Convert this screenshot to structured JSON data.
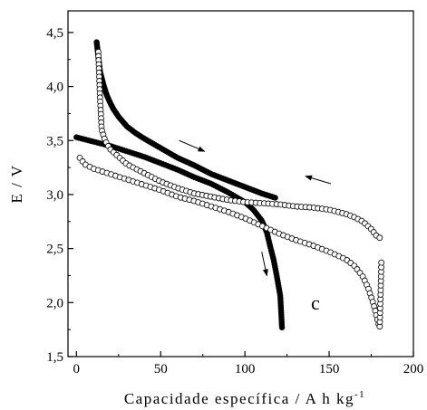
{
  "chart_data": {
    "type": "scatter",
    "title": "",
    "xlabel": "Capacidade específica / A h kg",
    "xlabel_superscript": "-1",
    "ylabel": "E / V",
    "xlim": [
      -5,
      200
    ],
    "ylim": [
      1.5,
      4.7
    ],
    "xticks": [
      0,
      50,
      100,
      150,
      200
    ],
    "yticks": [
      1.5,
      2.0,
      2.5,
      3.0,
      3.5,
      4.0,
      4.5
    ],
    "xtick_labels": [
      "0",
      "50",
      "100",
      "150",
      "200"
    ],
    "ytick_labels": [
      "1,5",
      "2,0",
      "2,5",
      "3,0",
      "3,5",
      "4,0",
      "4,5"
    ],
    "grid": false,
    "legend": "none",
    "annotation": "c",
    "series": [
      {
        "marker": "filled-circle",
        "color": "#000000",
        "curves": [
          {
            "x": [
              12,
              13,
              14,
              16,
              18,
              20,
              22,
              25,
              30,
              35,
              40,
              50,
              60,
              70,
              80,
              90,
              100,
              110,
              118
            ],
            "y": [
              4.41,
              4.28,
              4.14,
              4.02,
              3.92,
              3.85,
              3.79,
              3.72,
              3.63,
              3.57,
              3.52,
              3.43,
              3.34,
              3.27,
              3.19,
              3.13,
              3.07,
              3.01,
              2.97
            ]
          },
          {
            "x": [
              0,
              5,
              10,
              20,
              30,
              40,
              50,
              60,
              70,
              80,
              90,
              100,
              105,
              110,
              113,
              115,
              117,
              119,
              121,
              122
            ],
            "y": [
              3.53,
              3.51,
              3.49,
              3.45,
              3.4,
              3.35,
              3.29,
              3.23,
              3.16,
              3.1,
              3.02,
              2.93,
              2.86,
              2.76,
              2.65,
              2.52,
              2.4,
              2.24,
              2.06,
              1.77
            ]
          }
        ]
      },
      {
        "marker": "open-circle",
        "color": "#000000",
        "curves": [
          {
            "x": [
              13,
              14,
              15,
              17,
              20,
              25,
              30,
              40,
              50,
              60,
              70,
              80,
              90,
              100,
              110,
              120,
              130,
              140,
              150,
              160,
              165,
              170,
              175,
              178,
              180
            ],
            "y": [
              4.32,
              3.9,
              3.6,
              3.5,
              3.42,
              3.35,
              3.28,
              3.2,
              3.12,
              3.06,
              3.01,
              2.98,
              2.95,
              2.93,
              2.92,
              2.91,
              2.89,
              2.88,
              2.86,
              2.82,
              2.79,
              2.75,
              2.68,
              2.62,
              2.6
            ]
          },
          {
            "x": [
              2,
              5,
              10,
              20,
              30,
              40,
              50,
              60,
              70,
              80,
              90,
              100,
              110,
              120,
              130,
              140,
              150,
              160,
              165,
              170,
              173,
              175,
              177,
              178,
              179,
              180,
              181
            ],
            "y": [
              3.34,
              3.28,
              3.24,
              3.19,
              3.14,
              3.09,
              3.04,
              2.98,
              2.94,
              2.89,
              2.84,
              2.78,
              2.71,
              2.64,
              2.58,
              2.53,
              2.47,
              2.4,
              2.34,
              2.24,
              2.14,
              2.05,
              1.95,
              1.88,
              1.82,
              1.77,
              2.37
            ]
          }
        ]
      }
    ],
    "arrows": [
      {
        "from": [
          61,
          3.5
        ],
        "to": [
          76,
          3.4
        ]
      },
      {
        "from": [
          151,
          3.1
        ],
        "to": [
          136,
          3.17
        ]
      },
      {
        "from": [
          52,
          3.03
        ],
        "to": [
          66,
          2.95
        ]
      },
      {
        "from": [
          110,
          2.47
        ],
        "to": [
          113,
          2.25
        ]
      }
    ]
  }
}
